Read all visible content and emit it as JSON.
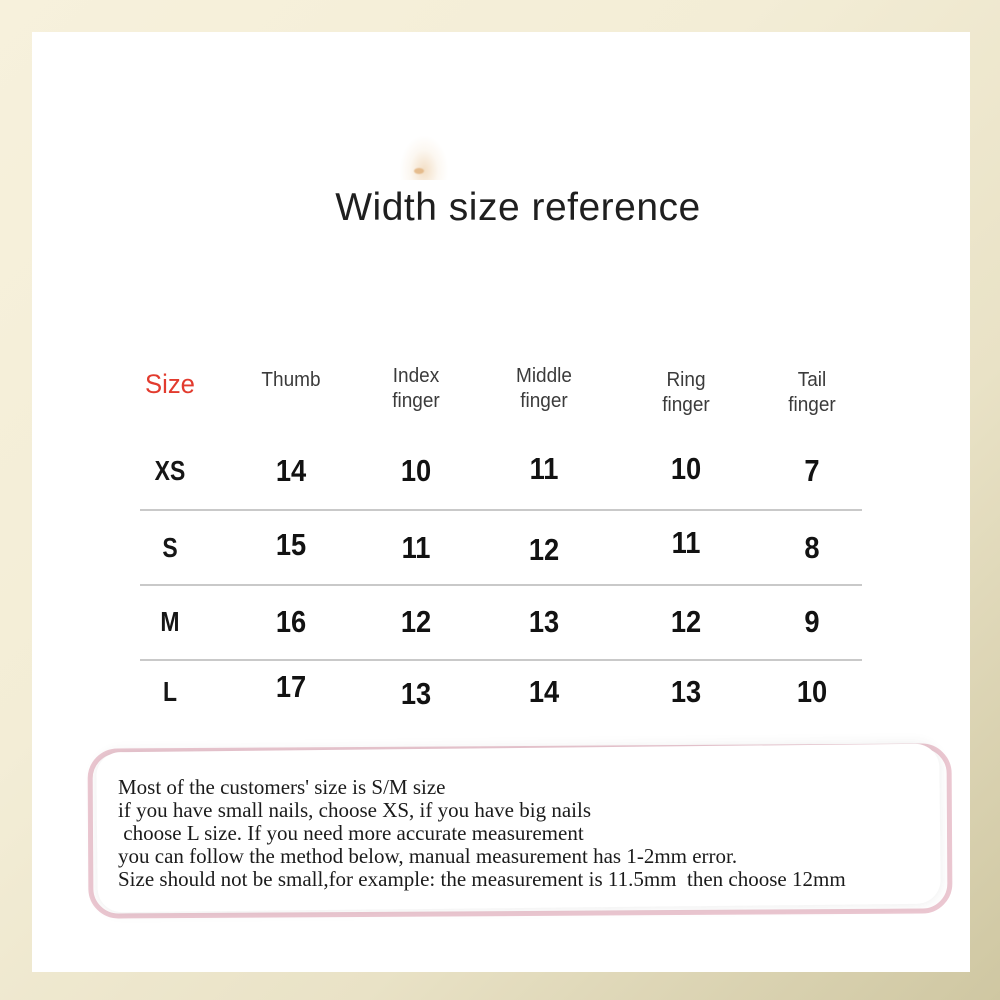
{
  "title": "Width size reference",
  "table": {
    "size_header": "Size",
    "columns": [
      {
        "l1": "Thumb",
        "l2": ""
      },
      {
        "l1": "Index",
        "l2": "finger"
      },
      {
        "l1": "Middle",
        "l2": "finger"
      },
      {
        "l1": "Ring",
        "l2": "finger"
      },
      {
        "l1": "Tail",
        "l2": "finger"
      }
    ],
    "rows": [
      {
        "label": "XS",
        "values": [
          "14",
          "10",
          "11",
          "10",
          "7"
        ]
      },
      {
        "label": "S",
        "values": [
          "15",
          "11",
          "12",
          "11",
          "8"
        ]
      },
      {
        "label": "M",
        "values": [
          "16",
          "12",
          "13",
          "12",
          "9"
        ]
      },
      {
        "label": "L",
        "values": [
          "17",
          "13",
          "14",
          "13",
          "10"
        ]
      }
    ]
  },
  "note": {
    "lines": [
      "Most of the customers' size is S/M size",
      "if you have small nails, choose XS, if you have big nails",
      " choose L size. If you need more accurate measurement",
      "you can follow the method below, manual measurement has 1-2mm error.",
      "Size should not be small,for example: the measurement is 11.5mm  then choose 12mm"
    ]
  },
  "colors": {
    "accent_red": "#e23b2e",
    "frame_light": "#f7f1dc",
    "frame_dark": "#cfc7a2",
    "note_pink": "#ebc7d1",
    "divider": "#c9c9c9"
  },
  "chart_data": {
    "type": "table",
    "title": "Width size reference",
    "columns": [
      "Size",
      "Thumb",
      "Index finger",
      "Middle finger",
      "Ring finger",
      "Tail finger"
    ],
    "rows": [
      [
        "XS",
        14,
        10,
        11,
        10,
        7
      ],
      [
        "S",
        15,
        11,
        12,
        11,
        8
      ],
      [
        "M",
        16,
        12,
        13,
        12,
        9
      ],
      [
        "L",
        17,
        13,
        14,
        13,
        10
      ]
    ]
  }
}
